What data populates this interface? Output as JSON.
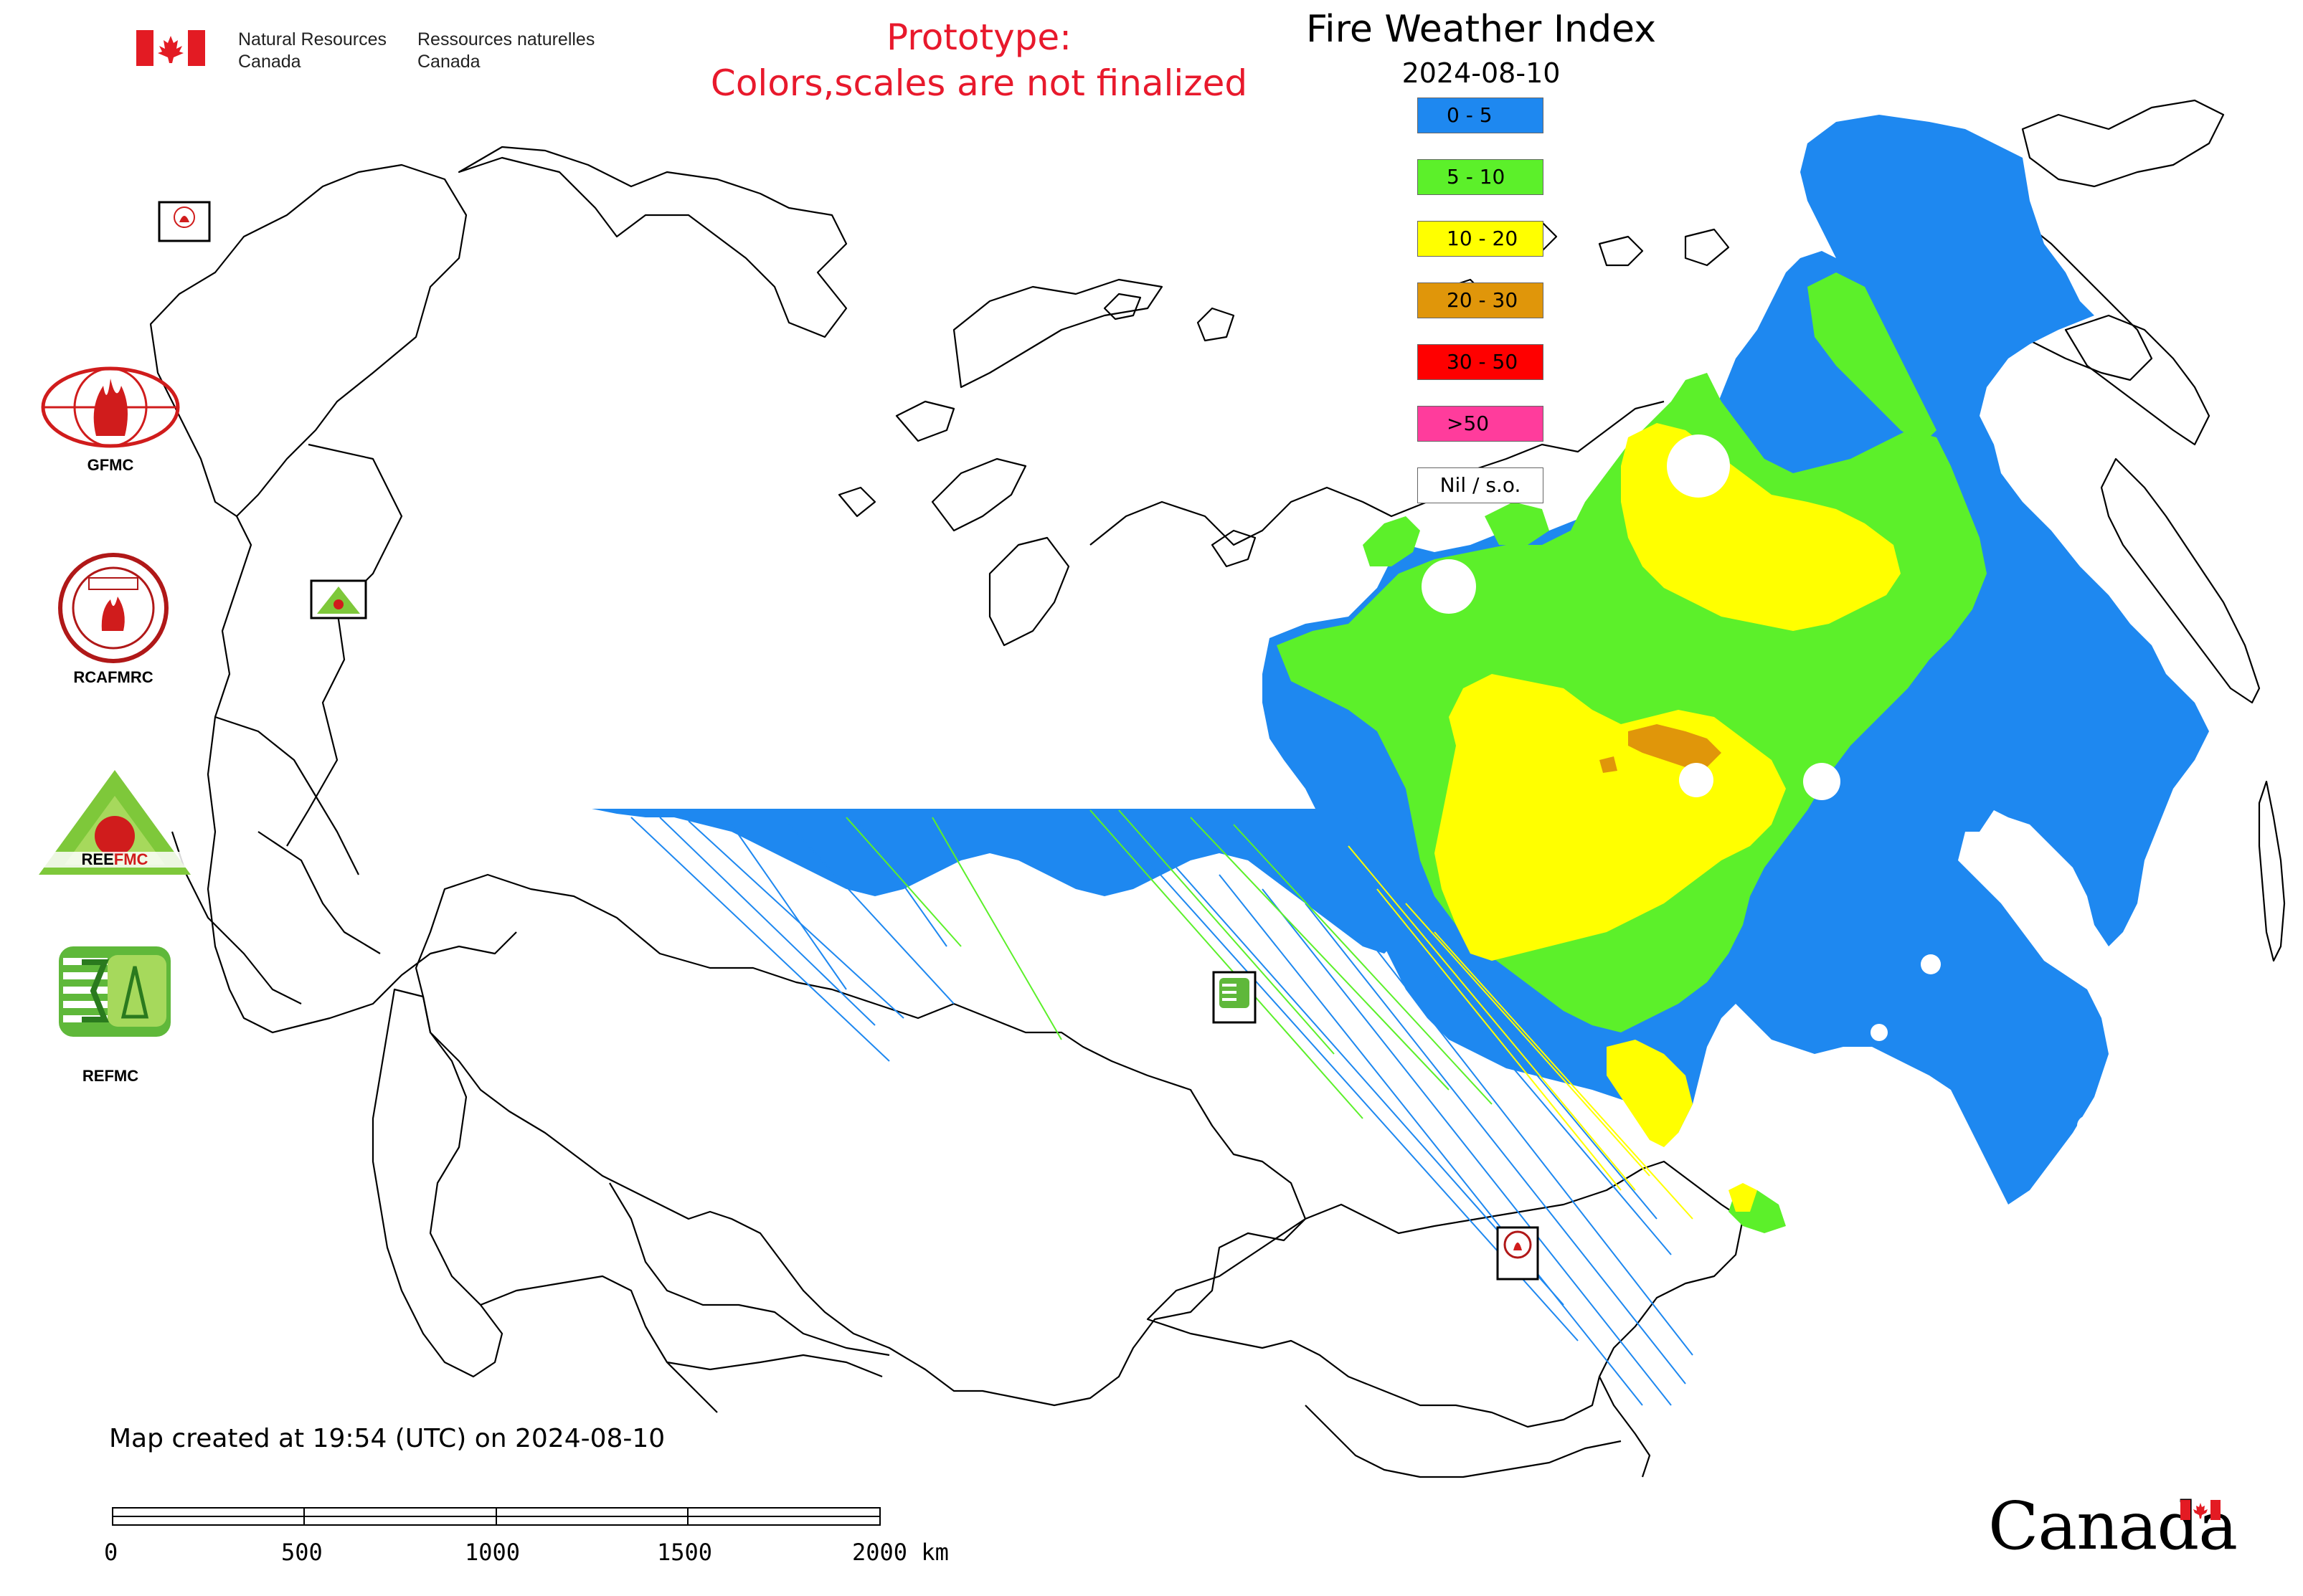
{
  "header": {
    "org_en": "Natural Resources\nCanada",
    "org_fr": "Ressources naturelles\nCanada",
    "prototype_line1": "Prototype:",
    "prototype_line2": "Colors,scales are not finalized",
    "title": "Fire Weather Index",
    "date": "2024-08-10"
  },
  "legend": [
    {
      "label": "0 - 5",
      "color": "#1e88f0"
    },
    {
      "label": "5 - 10",
      "color": "#5cf02a"
    },
    {
      "label": "10 - 20",
      "color": "#ffff00"
    },
    {
      "label": "20 - 30",
      "color": "#e0960a"
    },
    {
      "label": "30 - 50",
      "color": "#ff0000"
    },
    {
      "label": ">50",
      "color": "#ff3c9c"
    },
    {
      "label": "Nil / s.o.",
      "color": "#ffffff"
    }
  ],
  "logos": [
    {
      "label": "GFMC",
      "icon": "gfmc-logo-icon"
    },
    {
      "label": "RCAFMRC",
      "icon": "rcafmrc-logo-icon"
    },
    {
      "label": "REEFMC",
      "icon": "reefmc-logo-icon"
    },
    {
      "label": "REFMC",
      "icon": "refmc-logo-icon"
    }
  ],
  "map_markers": [
    {
      "label": "GFMC"
    },
    {
      "label": "REEFMC"
    },
    {
      "label": "REFMC"
    },
    {
      "label": "RCAFMRC"
    }
  ],
  "footer": {
    "created": "Map created at 19:54 (UTC) on 2024-08-10",
    "scale_labels": [
      "0",
      "500",
      "1000",
      "1500",
      "2000 km"
    ],
    "wordmark": "Canada"
  }
}
